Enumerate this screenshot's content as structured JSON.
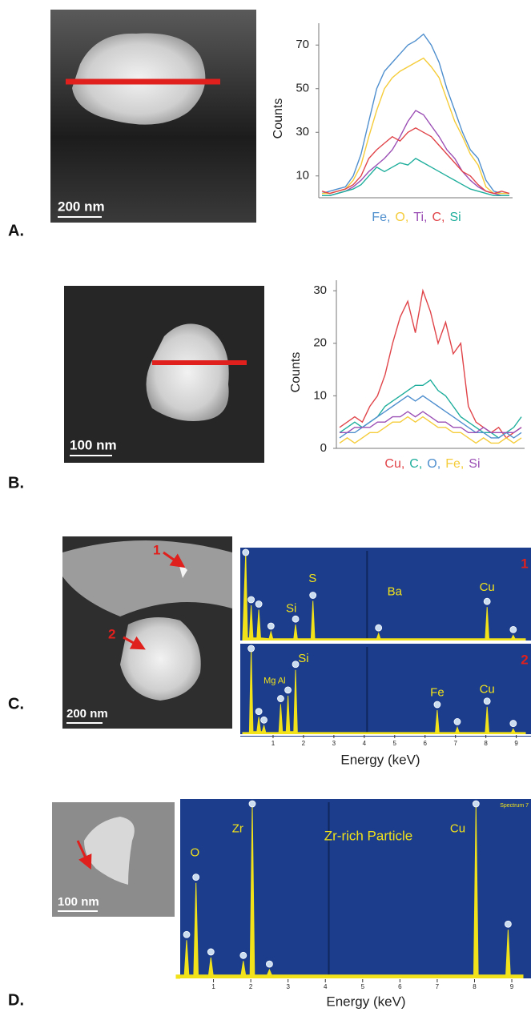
{
  "panels": [
    {
      "label": "A.",
      "scale_bar": "200 nm"
    },
    {
      "label": "B.",
      "scale_bar": "100 nm"
    },
    {
      "label": "C.",
      "scale_bar": "200 nm",
      "markers": [
        "1",
        "2"
      ]
    },
    {
      "label": "D.",
      "scale_bar": "100 nm"
    }
  ],
  "chart_data": [
    {
      "type": "line",
      "ylabel": "Counts",
      "ylim": [
        0,
        80
      ],
      "yticks": [
        10,
        30,
        50,
        70
      ],
      "categories": [
        null,
        null,
        null,
        null,
        null,
        null,
        null,
        null,
        null,
        null,
        null,
        null,
        null,
        null,
        null,
        null,
        null,
        null,
        null,
        null,
        null,
        null,
        null,
        null,
        null
      ],
      "series": [
        {
          "name": "Fe,",
          "color": "#4f8fce",
          "values": [
            2,
            3,
            4,
            5,
            10,
            20,
            35,
            50,
            58,
            62,
            66,
            70,
            72,
            75,
            70,
            62,
            50,
            40,
            30,
            22,
            18,
            8,
            3,
            2,
            2
          ]
        },
        {
          "name": "O,",
          "color": "#f5cc3a",
          "values": [
            2,
            2,
            3,
            4,
            8,
            15,
            28,
            40,
            50,
            55,
            58,
            60,
            62,
            64,
            60,
            55,
            45,
            35,
            28,
            20,
            15,
            5,
            2,
            2,
            2
          ]
        },
        {
          "name": "Ti,",
          "color": "#9b4fb5",
          "values": [
            1,
            1,
            2,
            3,
            5,
            8,
            12,
            15,
            18,
            22,
            28,
            35,
            40,
            38,
            33,
            28,
            22,
            18,
            12,
            8,
            5,
            3,
            2,
            1,
            1
          ]
        },
        {
          "name": "C,",
          "color": "#e0454a",
          "values": [
            3,
            2,
            3,
            4,
            6,
            10,
            18,
            22,
            25,
            28,
            26,
            30,
            32,
            30,
            28,
            24,
            20,
            16,
            12,
            10,
            6,
            3,
            2,
            3,
            2
          ]
        },
        {
          "name": "Si",
          "color": "#1fae9c",
          "values": [
            1,
            1,
            2,
            3,
            4,
            6,
            10,
            14,
            12,
            14,
            16,
            15,
            18,
            16,
            14,
            12,
            10,
            8,
            6,
            4,
            3,
            2,
            1,
            1,
            1
          ]
        }
      ]
    },
    {
      "type": "line",
      "ylabel": "Counts",
      "ylim": [
        0,
        32
      ],
      "yticks": [
        0,
        10,
        20,
        30
      ],
      "categories": [
        null,
        null,
        null,
        null,
        null,
        null,
        null,
        null,
        null,
        null,
        null,
        null,
        null,
        null,
        null,
        null,
        null,
        null,
        null,
        null,
        null,
        null,
        null,
        null,
        null
      ],
      "series": [
        {
          "name": "Cu,",
          "color": "#e0454a",
          "values": [
            4,
            5,
            6,
            5,
            8,
            10,
            14,
            20,
            25,
            28,
            22,
            30,
            26,
            20,
            24,
            18,
            20,
            8,
            5,
            4,
            3,
            4,
            2,
            3,
            4
          ]
        },
        {
          "name": "C,",
          "color": "#1fae9c",
          "values": [
            3,
            4,
            5,
            4,
            5,
            6,
            8,
            9,
            10,
            11,
            12,
            12,
            13,
            11,
            10,
            8,
            6,
            5,
            4,
            3,
            3,
            2,
            3,
            4,
            6
          ]
        },
        {
          "name": "O,",
          "color": "#4f8fce",
          "values": [
            2,
            3,
            3,
            4,
            5,
            6,
            7,
            8,
            9,
            10,
            9,
            10,
            9,
            8,
            7,
            6,
            5,
            4,
            3,
            3,
            2,
            2,
            3,
            2,
            3
          ]
        },
        {
          "name": "Fe,",
          "color": "#f5cc3a",
          "values": [
            1,
            2,
            1,
            2,
            3,
            3,
            4,
            5,
            5,
            6,
            5,
            6,
            5,
            4,
            4,
            3,
            3,
            2,
            1,
            2,
            1,
            1,
            2,
            1,
            2
          ]
        },
        {
          "name": "Si",
          "color": "#9b4fb5",
          "values": [
            3,
            3,
            4,
            4,
            4,
            5,
            5,
            6,
            6,
            7,
            6,
            7,
            6,
            5,
            5,
            4,
            4,
            3,
            3,
            4,
            3,
            3,
            3,
            3,
            4
          ]
        }
      ]
    },
    {
      "type": "area",
      "label": "1",
      "color": "#f2e21a",
      "background": "#1b3d8c",
      "xlim": [
        0,
        9.3
      ],
      "ylim": [
        0,
        100
      ],
      "x": [
        0,
        0.1,
        0.16,
        0.22,
        0.28,
        0.34,
        0.47,
        0.53,
        0.59,
        0.87,
        0.93,
        0.99,
        1.68,
        1.74,
        1.8,
        2.25,
        2.31,
        2.37,
        4.41,
        4.47,
        4.53,
        7.98,
        8.04,
        8.1,
        8.84,
        8.9,
        8.96,
        9.3
      ],
      "values": [
        2,
        100,
        3,
        3,
        40,
        3,
        3,
        35,
        3,
        2,
        10,
        2,
        2,
        18,
        2,
        2,
        45,
        2,
        2,
        8,
        2,
        2,
        38,
        2,
        2,
        6,
        2,
        2
      ],
      "annotations": [
        {
          "text": "Si",
          "x": 1.6,
          "y": 36
        },
        {
          "text": "S",
          "x": 2.3,
          "y": 70
        },
        {
          "text": "Ba",
          "x": 5.0,
          "y": 55
        },
        {
          "text": "Cu",
          "x": 8.04,
          "y": 60
        }
      ]
    },
    {
      "type": "area",
      "label": "2",
      "color": "#f2e21a",
      "background": "#1b3d8c",
      "xlim": [
        0,
        9.3
      ],
      "ylim": [
        0,
        100
      ],
      "xlabel": "Energy (keV)",
      "xticks": [
        1,
        2,
        3,
        4,
        5,
        6,
        7,
        8,
        9
      ],
      "x": [
        0,
        0.22,
        0.28,
        0.34,
        0.47,
        0.53,
        0.59,
        0.64,
        0.7,
        0.76,
        1.19,
        1.25,
        1.31,
        1.43,
        1.49,
        1.55,
        1.68,
        1.74,
        1.8,
        6.34,
        6.4,
        6.46,
        7.0,
        7.06,
        7.12,
        7.98,
        8.04,
        8.1,
        8.84,
        8.9,
        8.96,
        9.3
      ],
      "values": [
        2,
        2,
        100,
        3,
        3,
        20,
        3,
        3,
        10,
        2,
        2,
        35,
        3,
        3,
        45,
        3,
        3,
        75,
        2,
        2,
        28,
        2,
        2,
        8,
        2,
        2,
        32,
        2,
        2,
        6,
        2,
        2
      ],
      "annotations": [
        {
          "text": "Mg Al",
          "x": 1.05,
          "y": 62
        },
        {
          "text": "Si",
          "x": 2.0,
          "y": 88
        },
        {
          "text": "Fe",
          "x": 6.4,
          "y": 48
        },
        {
          "text": "Cu",
          "x": 8.04,
          "y": 52
        }
      ]
    },
    {
      "type": "area",
      "title": "Zr-rich Particle",
      "note": "Spectrum 7",
      "color": "#f2e21a",
      "background": "#1b3d8c",
      "xlim": [
        0,
        9.3
      ],
      "ylim": [
        0,
        100
      ],
      "xlabel": "Energy (keV)",
      "xticks": [
        1,
        2,
        3,
        4,
        5,
        6,
        7,
        8,
        9
      ],
      "x": [
        0,
        0.22,
        0.28,
        0.34,
        0.47,
        0.53,
        0.59,
        0.87,
        0.93,
        0.99,
        1.74,
        1.8,
        1.86,
        1.98,
        2.04,
        2.1,
        2.44,
        2.5,
        2.56,
        7.98,
        8.04,
        8.1,
        8.84,
        8.9,
        8.96,
        9.3
      ],
      "values": [
        2,
        2,
        22,
        2,
        2,
        55,
        2,
        2,
        12,
        2,
        2,
        10,
        2,
        2,
        100,
        2,
        2,
        5,
        2,
        2,
        100,
        2,
        2,
        28,
        2,
        2
      ],
      "annotations": [
        {
          "text": "O",
          "x": 0.5,
          "y": 72
        },
        {
          "text": "Zr",
          "x": 1.65,
          "y": 86
        },
        {
          "text": "Cu",
          "x": 7.55,
          "y": 86
        }
      ]
    }
  ]
}
